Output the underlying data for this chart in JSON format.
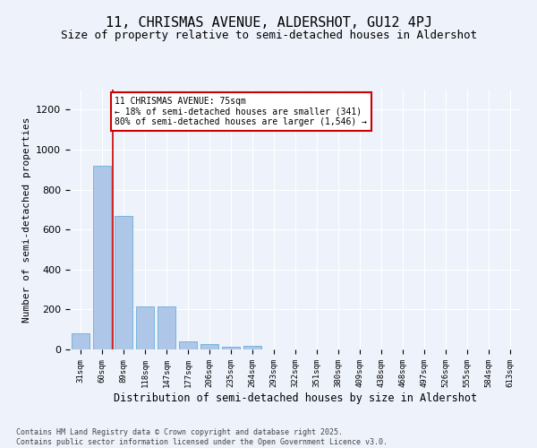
{
  "title": "11, CHRISMAS AVENUE, ALDERSHOT, GU12 4PJ",
  "subtitle": "Size of property relative to semi-detached houses in Aldershot",
  "xlabel": "Distribution of semi-detached houses by size in Aldershot",
  "ylabel": "Number of semi-detached properties",
  "categories": [
    "31sqm",
    "60sqm",
    "89sqm",
    "118sqm",
    "147sqm",
    "177sqm",
    "206sqm",
    "235sqm",
    "264sqm",
    "293sqm",
    "322sqm",
    "351sqm",
    "380sqm",
    "409sqm",
    "438sqm",
    "468sqm",
    "497sqm",
    "526sqm",
    "555sqm",
    "584sqm",
    "613sqm"
  ],
  "values": [
    80,
    920,
    670,
    215,
    215,
    40,
    25,
    15,
    20,
    0,
    0,
    0,
    0,
    0,
    0,
    0,
    0,
    0,
    0,
    0,
    0
  ],
  "bar_color": "#aec6e8",
  "bar_edge_color": "#6aaed6",
  "vline_x": 1.5,
  "vline_color": "#cc0000",
  "annotation_title": "11 CHRISMAS AVENUE: 75sqm",
  "annotation_line1": "← 18% of semi-detached houses are smaller (341)",
  "annotation_line2": "80% of semi-detached houses are larger (1,546) →",
  "annotation_box_color": "#cc0000",
  "ylim": [
    0,
    1300
  ],
  "yticks": [
    0,
    200,
    400,
    600,
    800,
    1000,
    1200
  ],
  "footer_line1": "Contains HM Land Registry data © Crown copyright and database right 2025.",
  "footer_line2": "Contains public sector information licensed under the Open Government Licence v3.0.",
  "bg_color": "#eef2fb",
  "plot_bg_color": "#eef2fb",
  "grid_color": "#ffffff",
  "title_fontsize": 11,
  "subtitle_fontsize": 9
}
